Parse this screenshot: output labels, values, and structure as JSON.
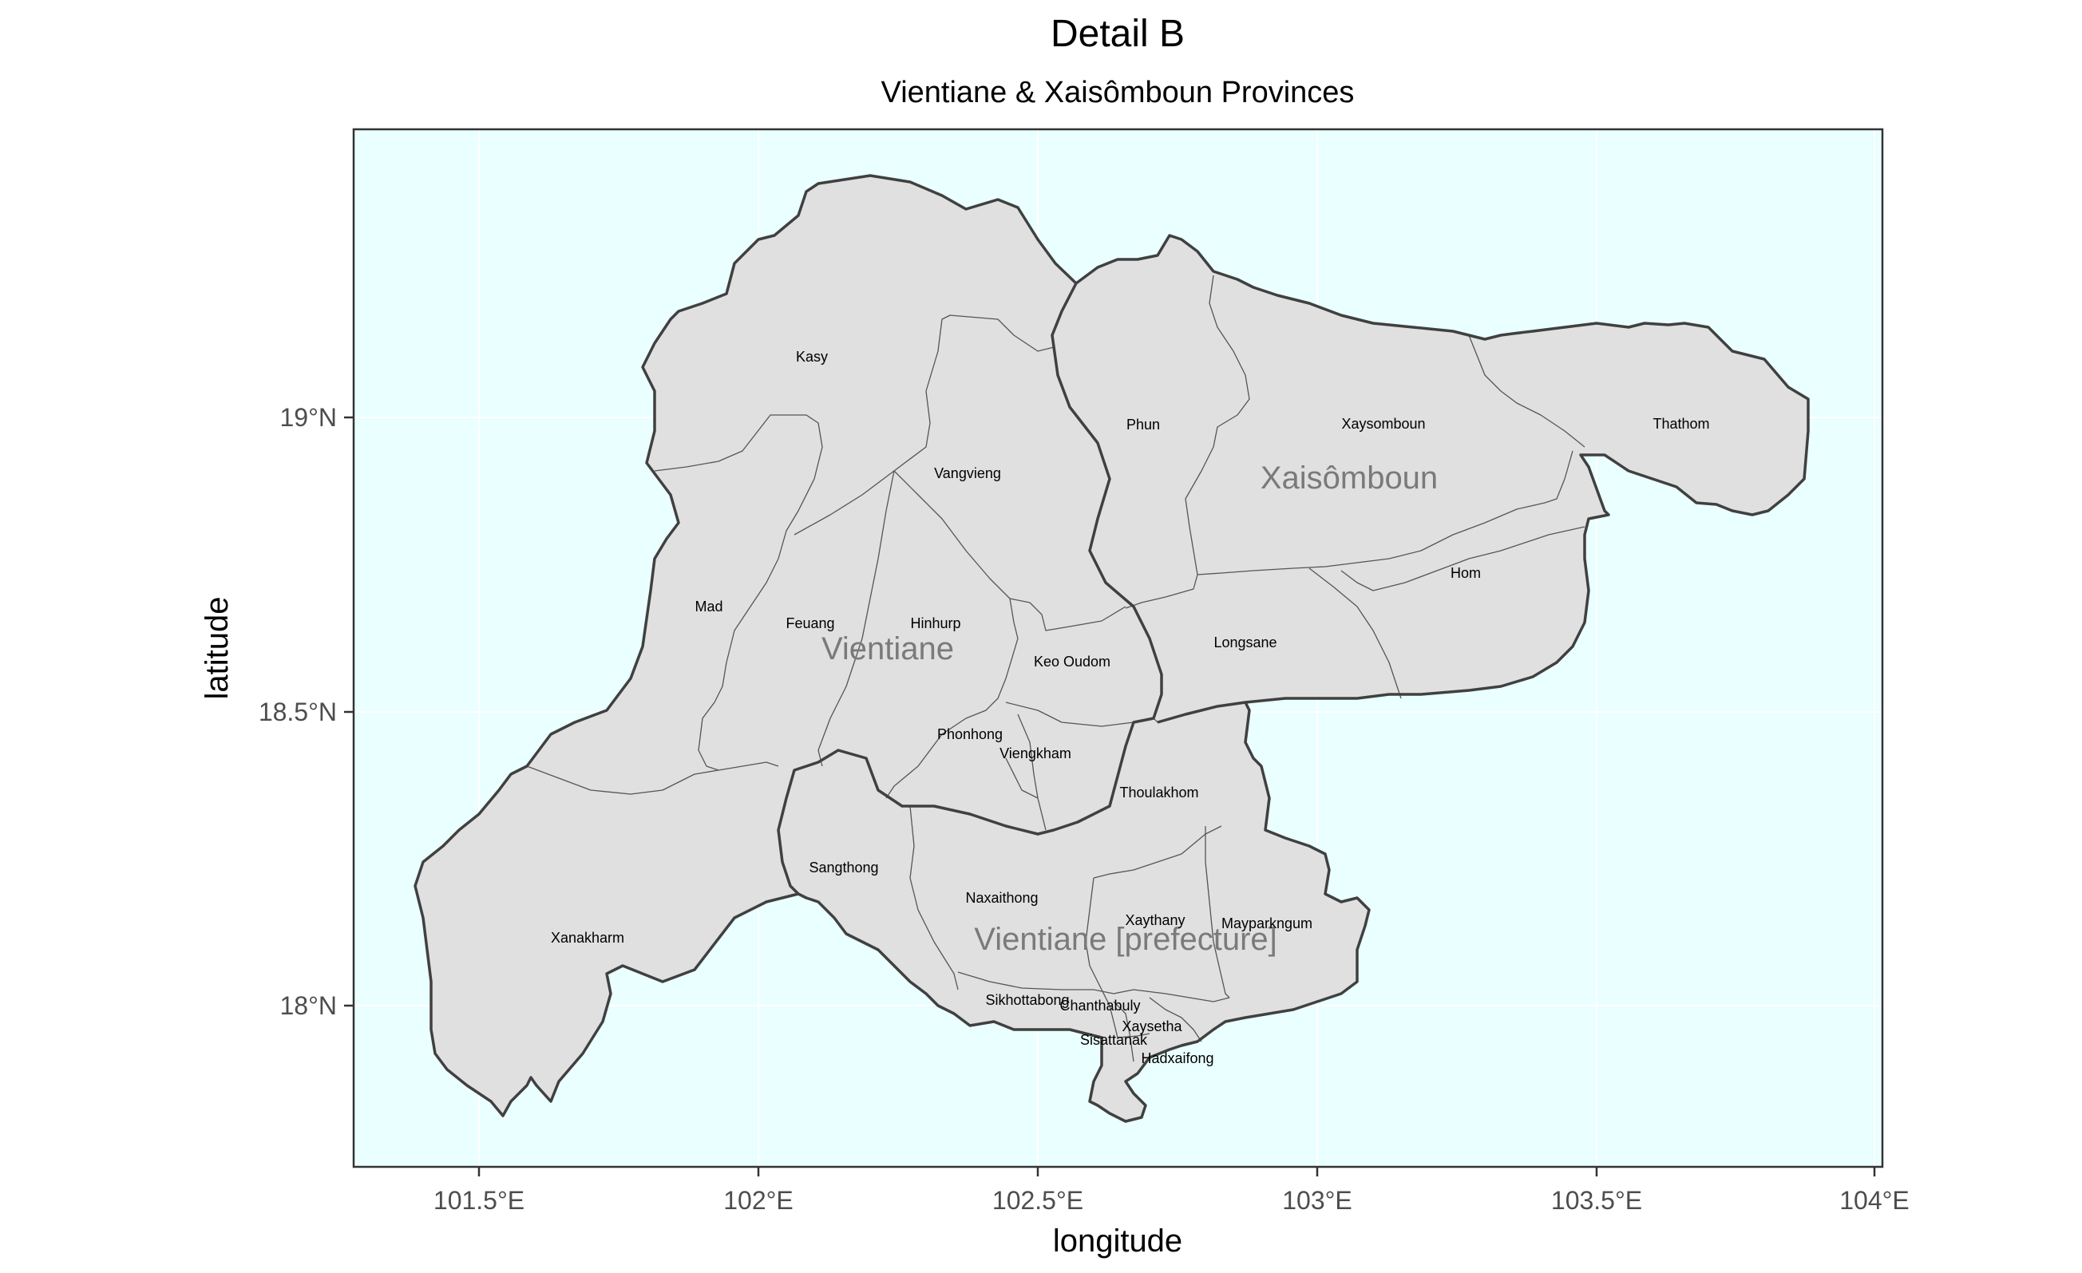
{
  "title": "Detail B",
  "subtitle": "Vientiane & Xaisômboun Provinces",
  "x_axis": {
    "label": "longitude",
    "ticks": [
      "101.5°E",
      "102°E",
      "102.5°E",
      "103°E",
      "103.5°E",
      "104°E"
    ]
  },
  "y_axis": {
    "label": "latitude",
    "ticks": [
      "19°N",
      "18.5°N",
      "18°N"
    ]
  },
  "colors": {
    "panel_background": "#eaffff",
    "land": "#e0e0e0",
    "province_border": "#404040",
    "district_border": "#555555",
    "province_label": "#7a7a7a"
  },
  "provinces": {
    "xaisomboun": "Xaisômboun",
    "vientiane": "Vientiane",
    "vientiane_prefecture": "Vientiane [prefecture]"
  },
  "districts": {
    "kasy": "Kasy",
    "vangvieng": "Vangvieng",
    "phun": "Phun",
    "xaysomboun": "Xaysomboun",
    "thathom": "Thathom",
    "mad": "Mad",
    "feuang": "Feuang",
    "hinhurp": "Hinhurp",
    "keo_oudom": "Keo Oudom",
    "longsane": "Longsane",
    "hom": "Hom",
    "phonhong": "Phonhong",
    "viengkham": "Viengkham",
    "thoulakhom": "Thoulakhom",
    "sangthong": "Sangthong",
    "naxaithong": "Naxaithong",
    "xanakharm": "Xanakharm",
    "xaythany": "Xaythany",
    "mayparkngum": "Mayparkngum",
    "sikhottabong": "Sikhottabong",
    "chanthabuly": "Chanthabuly",
    "xaysetha": "Xaysetha",
    "sisattanak": "Sisattanak",
    "hadxaifong": "Hadxaifong"
  }
}
